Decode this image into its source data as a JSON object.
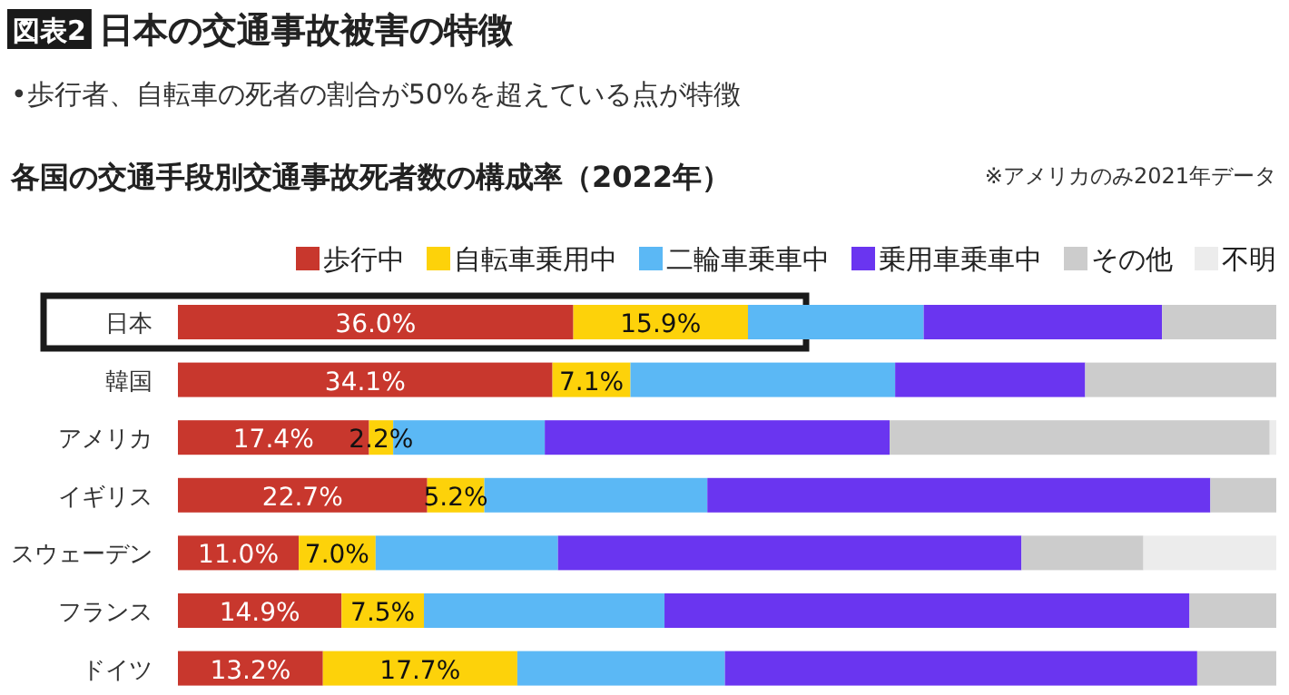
{
  "chart_data": {
    "type": "bar",
    "orientation": "horizontal",
    "stacked": true,
    "title": "日本の交通事故被害の特徴",
    "subtitle": "•歩行者、自転車の死者の割合が50%を超えている点が特徴",
    "annotations": [
      "図表2",
      "各国の交通手段別交通事故死者数の構成率（2022年）",
      "※アメリカのみ2021年データ"
    ],
    "categories": [
      "日本",
      "韓国",
      "アメリカ",
      "イギリス",
      "スウェーデン",
      "フランス",
      "ドイツ"
    ],
    "legend": "top",
    "series": [
      {
        "name": "歩行中",
        "color": "#c8372d",
        "values": [
          36.0,
          34.1,
          17.4,
          22.7,
          11.0,
          14.9,
          13.2
        ],
        "value_labels": [
          "36.0%",
          "34.1%",
          "17.4%",
          "22.7%",
          "11.0%",
          "14.9%",
          "13.2%"
        ]
      },
      {
        "name": "自転車乗用中",
        "color": "#fdd20a",
        "values": [
          15.9,
          7.1,
          2.2,
          5.2,
          7.0,
          7.5,
          17.7
        ],
        "value_labels": [
          "15.9%",
          "7.1%",
          "2.2%",
          "5.2%",
          "7.0%",
          "7.5%",
          "17.7%"
        ]
      },
      {
        "name": "二輪車乗車中",
        "color": "#5bb8f5",
        "values": [
          16.0,
          24.1,
          13.8,
          20.3,
          16.6,
          21.9,
          18.9
        ]
      },
      {
        "name": "乗用車乗車中",
        "color": "#6a35f0",
        "values": [
          21.7,
          17.3,
          31.4,
          45.8,
          42.2,
          47.8,
          43.0
        ]
      },
      {
        "name": "その他",
        "color": "#cccccc",
        "values": [
          10.4,
          17.4,
          34.6,
          6.0,
          11.1,
          7.9,
          7.2
        ]
      },
      {
        "name": "不明",
        "color": "#ececec",
        "values": [
          0,
          0,
          0.6,
          0,
          12.1,
          0,
          0
        ]
      }
    ]
  }
}
